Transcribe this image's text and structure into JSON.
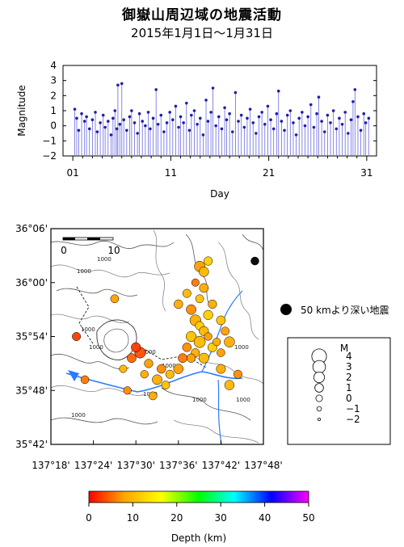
{
  "title": "御嶽山周辺域の地震活動",
  "subtitle": "2015年1月1日～1月31日",
  "chart_data": [
    {
      "type": "scatter",
      "subtype": "stem",
      "title": "",
      "xlabel": "Day",
      "ylabel": "Magnitude",
      "xlim": [
        0,
        32
      ],
      "ylim": [
        -2,
        4
      ],
      "x_tick_labels": [
        "01",
        "11",
        "21",
        "31"
      ],
      "x_ticks": [
        1,
        11,
        21,
        31
      ],
      "y_ticks": [
        -2,
        -1,
        0,
        1,
        2,
        3,
        4
      ],
      "y_tick_labels": [
        "−2",
        "−1",
        "0",
        "1",
        "2",
        "3",
        "4"
      ],
      "grid": false,
      "series_color": "#1f1fa8",
      "stem_color": "#6a6ae0",
      "points": [
        [
          1.2,
          1.1
        ],
        [
          1.4,
          0.5
        ],
        [
          1.6,
          -0.3
        ],
        [
          1.9,
          0.8
        ],
        [
          2.2,
          0.3
        ],
        [
          2.4,
          0.6
        ],
        [
          2.7,
          -0.2
        ],
        [
          3.0,
          0.4
        ],
        [
          3.3,
          0.9
        ],
        [
          3.5,
          -0.4
        ],
        [
          3.8,
          0.2
        ],
        [
          4.1,
          0.7
        ],
        [
          4.3,
          -0.1
        ],
        [
          4.6,
          0.3
        ],
        [
          4.9,
          -0.6
        ],
        [
          5.1,
          0.5
        ],
        [
          5.3,
          1.0
        ],
        [
          5.5,
          -0.2
        ],
        [
          5.6,
          2.7
        ],
        [
          5.8,
          0.1
        ],
        [
          6.0,
          2.8
        ],
        [
          6.2,
          0.4
        ],
        [
          6.5,
          -0.3
        ],
        [
          6.8,
          0.6
        ],
        [
          7.0,
          1.0
        ],
        [
          7.3,
          0.2
        ],
        [
          7.6,
          -0.5
        ],
        [
          7.8,
          0.8
        ],
        [
          8.1,
          0.3
        ],
        [
          8.4,
          0.0
        ],
        [
          8.7,
          0.9
        ],
        [
          8.9,
          -0.2
        ],
        [
          9.2,
          0.5
        ],
        [
          9.5,
          2.4
        ],
        [
          9.7,
          0.1
        ],
        [
          10.0,
          0.7
        ],
        [
          10.3,
          -0.4
        ],
        [
          10.6,
          0.2
        ],
        [
          10.9,
          0.9
        ],
        [
          11.2,
          0.4
        ],
        [
          11.5,
          1.3
        ],
        [
          11.8,
          -0.1
        ],
        [
          12.0,
          0.6
        ],
        [
          12.3,
          0.2
        ],
        [
          12.6,
          1.5
        ],
        [
          12.9,
          -0.3
        ],
        [
          13.1,
          0.7
        ],
        [
          13.4,
          1.0
        ],
        [
          13.7,
          0.1
        ],
        [
          14.0,
          0.5
        ],
        [
          14.3,
          -0.6
        ],
        [
          14.6,
          1.7
        ],
        [
          14.8,
          0.3
        ],
        [
          15.1,
          0.9
        ],
        [
          15.3,
          2.5
        ],
        [
          15.6,
          0.0
        ],
        [
          15.9,
          0.6
        ],
        [
          16.2,
          -0.2
        ],
        [
          16.5,
          1.2
        ],
        [
          16.7,
          0.4
        ],
        [
          17.0,
          0.8
        ],
        [
          17.3,
          -0.4
        ],
        [
          17.6,
          2.2
        ],
        [
          17.9,
          0.3
        ],
        [
          18.2,
          0.7
        ],
        [
          18.5,
          -0.1
        ],
        [
          18.8,
          0.5
        ],
        [
          19.1,
          1.1
        ],
        [
          19.4,
          0.2
        ],
        [
          19.7,
          -0.5
        ],
        [
          20.0,
          0.6
        ],
        [
          20.3,
          0.9
        ],
        [
          20.6,
          0.1
        ],
        [
          20.9,
          1.3
        ],
        [
          21.2,
          0.4
        ],
        [
          21.5,
          -0.2
        ],
        [
          21.8,
          0.8
        ],
        [
          22.0,
          2.3
        ],
        [
          22.3,
          0.3
        ],
        [
          22.6,
          -0.3
        ],
        [
          22.9,
          0.7
        ],
        [
          23.2,
          1.0
        ],
        [
          23.5,
          0.2
        ],
        [
          23.8,
          -0.6
        ],
        [
          24.1,
          0.5
        ],
        [
          24.4,
          0.9
        ],
        [
          24.7,
          0.0
        ],
        [
          25.0,
          0.6
        ],
        [
          25.3,
          1.4
        ],
        [
          25.6,
          -0.1
        ],
        [
          25.9,
          0.8
        ],
        [
          26.1,
          1.9
        ],
        [
          26.4,
          0.3
        ],
        [
          26.7,
          -0.4
        ],
        [
          27.0,
          0.7
        ],
        [
          27.3,
          0.2
        ],
        [
          27.6,
          1.0
        ],
        [
          27.9,
          -0.2
        ],
        [
          28.2,
          0.5
        ],
        [
          28.5,
          0.1
        ],
        [
          28.8,
          0.9
        ],
        [
          29.1,
          -0.5
        ],
        [
          29.4,
          0.4
        ],
        [
          29.6,
          1.6
        ],
        [
          29.8,
          2.4
        ],
        [
          30.1,
          0.6
        ],
        [
          30.4,
          -0.3
        ],
        [
          30.7,
          0.8
        ],
        [
          30.9,
          0.2
        ],
        [
          31.2,
          0.5
        ]
      ]
    },
    {
      "type": "scatter",
      "subtype": "epicenter-map",
      "title": "",
      "xlabel": "",
      "ylabel": "",
      "xlim": [
        137.3,
        137.8
      ],
      "ylim": [
        35.7,
        36.1
      ],
      "x_tick_labels": [
        "137°18'",
        "137°24'",
        "137°30'",
        "137°36'",
        "137°42'",
        "137°48'"
      ],
      "y_tick_labels": [
        "35°42'",
        "35°48'",
        "35°54'",
        "36°00'",
        "36°06'"
      ],
      "scale_bar_labels": [
        "0",
        "10"
      ],
      "contour_labels": [
        "1000",
        "1000",
        "1000",
        "1000",
        "1000",
        "1000",
        "1000",
        "1000",
        "1000",
        "1000",
        "1000"
      ],
      "deep_legend_label": "50 kmより深い地震",
      "size_legend": {
        "title": "M",
        "labels": [
          "4",
          "3",
          "2",
          "1",
          "0",
          "−1",
          "−2"
        ]
      },
      "colorbar": {
        "label": "Depth (km)",
        "ticks": [
          0,
          10,
          20,
          30,
          40,
          50
        ],
        "tick_labels": [
          "0",
          "10",
          "20",
          "30",
          "40",
          "50"
        ],
        "colors": [
          "#ff0000",
          "#ffa500",
          "#ffff00",
          "#00ff00",
          "#00ffff",
          "#0000ff",
          "#ff00ff"
        ]
      },
      "points": [
        [
          137.65,
          36.03,
          2.0,
          8
        ],
        [
          137.66,
          36.02,
          1.5,
          10
        ],
        [
          137.67,
          36.04,
          1.0,
          12
        ],
        [
          137.64,
          36.0,
          0.5,
          6
        ],
        [
          137.66,
          35.99,
          1.2,
          9
        ],
        [
          137.65,
          35.97,
          0.8,
          11
        ],
        [
          137.63,
          35.95,
          1.6,
          7
        ],
        [
          137.64,
          35.93,
          2.2,
          9
        ],
        [
          137.65,
          35.92,
          1.0,
          12
        ],
        [
          137.66,
          35.91,
          1.4,
          10
        ],
        [
          137.67,
          35.9,
          0.6,
          8
        ],
        [
          137.63,
          35.9,
          1.8,
          11
        ],
        [
          137.62,
          35.88,
          1.1,
          7
        ],
        [
          137.64,
          35.87,
          0.9,
          9
        ],
        [
          137.66,
          35.86,
          1.7,
          10
        ],
        [
          137.68,
          35.88,
          1.3,
          12
        ],
        [
          137.7,
          35.87,
          0.7,
          8
        ],
        [
          137.72,
          35.89,
          1.9,
          9
        ],
        [
          137.61,
          35.86,
          1.2,
          6
        ],
        [
          137.6,
          35.84,
          1.5,
          8
        ],
        [
          137.58,
          35.83,
          0.9,
          10
        ],
        [
          137.56,
          35.84,
          1.1,
          7
        ],
        [
          137.55,
          35.82,
          1.6,
          9
        ],
        [
          137.57,
          35.81,
          0.8,
          11
        ],
        [
          137.53,
          35.85,
          1.0,
          8
        ],
        [
          137.51,
          35.87,
          2.1,
          4
        ],
        [
          137.5,
          35.88,
          1.4,
          3
        ],
        [
          137.52,
          35.83,
          0.6,
          9
        ],
        [
          137.49,
          35.86,
          1.2,
          5
        ],
        [
          137.47,
          35.84,
          0.5,
          10
        ],
        [
          137.7,
          35.84,
          1.3,
          9
        ],
        [
          137.74,
          35.83,
          0.9,
          7
        ],
        [
          137.72,
          35.81,
          1.5,
          10
        ],
        [
          137.36,
          35.9,
          0.9,
          3
        ],
        [
          137.38,
          35.82,
          0.7,
          6
        ],
        [
          137.45,
          35.97,
          0.8,
          8
        ],
        [
          137.68,
          35.96,
          1.0,
          9
        ],
        [
          137.7,
          35.93,
          1.2,
          11
        ],
        [
          137.71,
          35.91,
          0.8,
          8
        ],
        [
          137.62,
          35.98,
          0.9,
          10
        ],
        [
          137.6,
          35.96,
          1.1,
          9
        ],
        [
          137.67,
          35.94,
          1.4,
          12
        ],
        [
          137.69,
          35.89,
          0.6,
          9
        ],
        [
          137.65,
          35.89,
          2.4,
          10
        ],
        [
          137.63,
          35.86,
          1.0,
          8
        ],
        [
          137.48,
          35.8,
          0.6,
          7
        ],
        [
          137.54,
          35.79,
          0.8,
          9
        ],
        [
          137.78,
          36.04,
          2.8,
          60
        ]
      ]
    }
  ]
}
